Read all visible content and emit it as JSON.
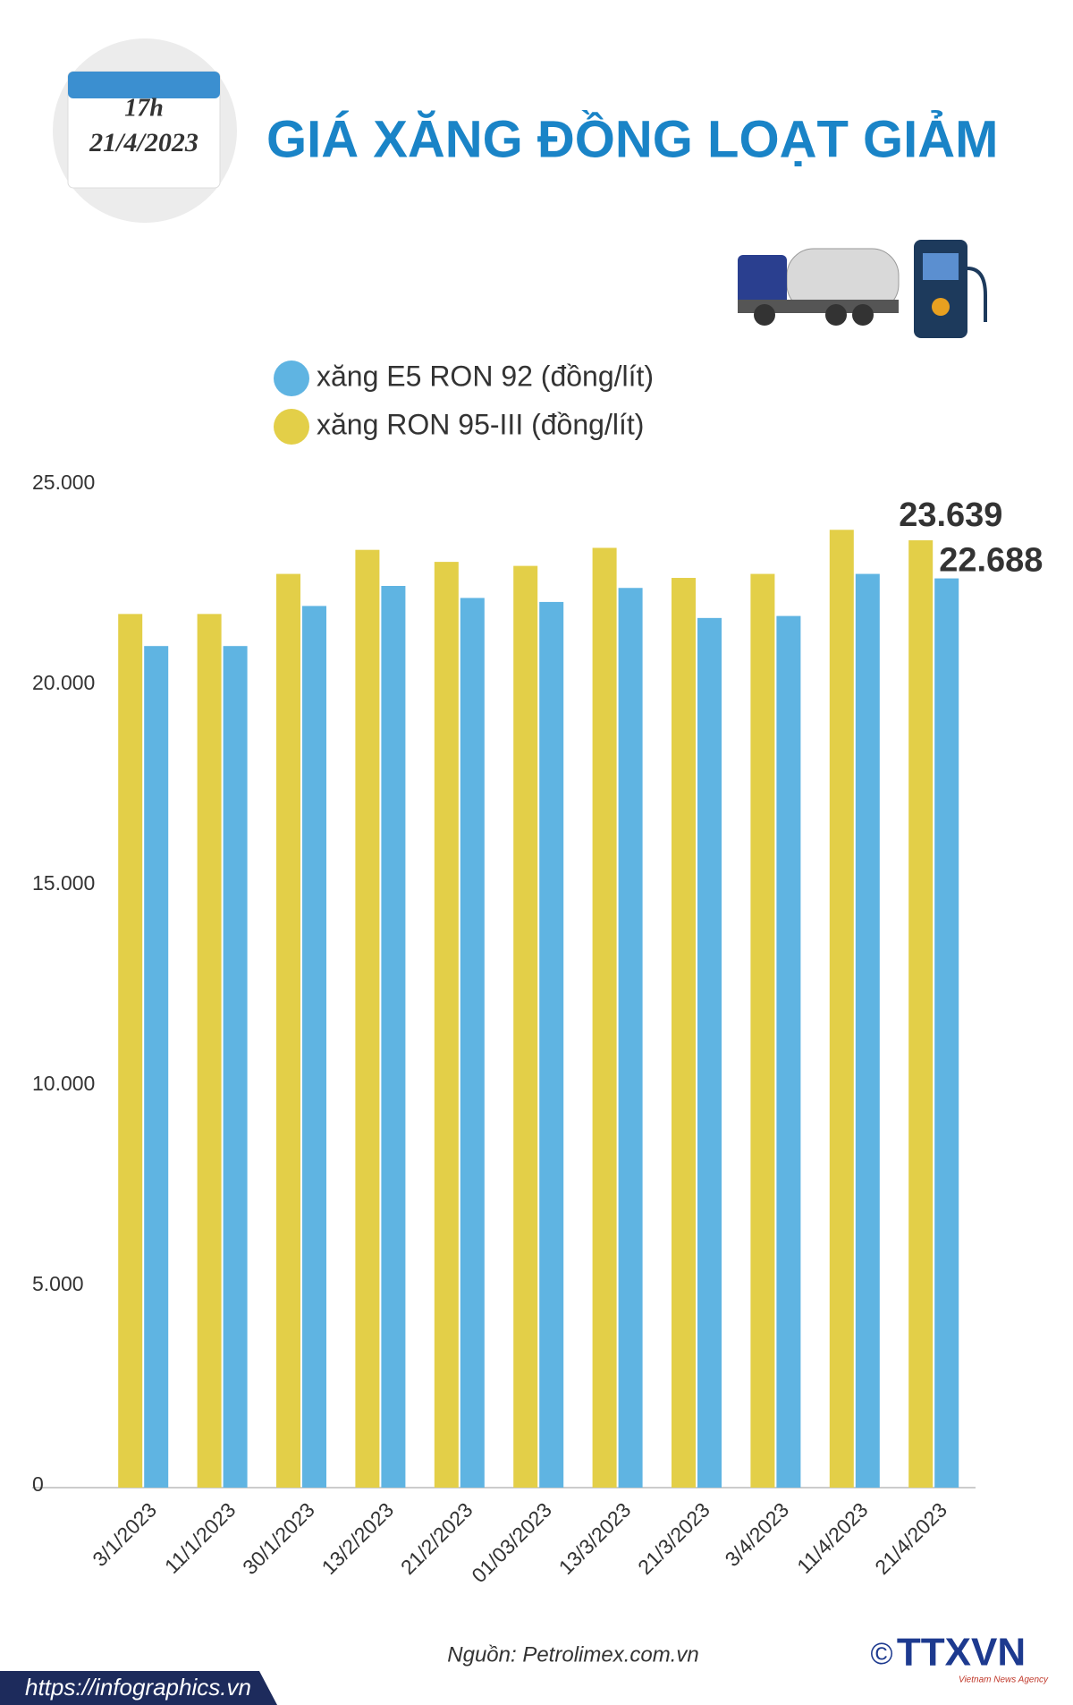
{
  "chart_data": {
    "type": "bar",
    "title": "GIÁ XĂNG ĐỒNG LOẠT GIẢM",
    "time": "17h",
    "date": "21/4/2023",
    "categories": [
      "3/1/2023",
      "11/1/2023",
      "30/1/2023",
      "13/2/2023",
      "21/2/2023",
      "01/03/2023",
      "13/3/2023",
      "21/3/2023",
      "3/4/2023",
      "11/4/2023",
      "21/4/2023"
    ],
    "series": [
      {
        "name": "xăng RON 95-III (đồng/lít)",
        "color": "#e3cf48",
        "values": [
          21800,
          21800,
          22800,
          23400,
          23100,
          23000,
          23450,
          22700,
          22800,
          23900,
          23639
        ],
        "value_labels": [
          null,
          null,
          null,
          null,
          null,
          null,
          null,
          null,
          null,
          null,
          "23.639"
        ]
      },
      {
        "name": "xăng E5 RON 92 (đồng/lít)",
        "color": "#5fb4e2",
        "values": [
          21000,
          21000,
          22000,
          22500,
          22200,
          22100,
          22450,
          21700,
          21750,
          22800,
          22688
        ],
        "value_labels": [
          null,
          null,
          null,
          null,
          null,
          null,
          null,
          null,
          null,
          null,
          "22.688"
        ]
      }
    ],
    "legend_order": [
      1,
      0
    ],
    "ylim": [
      0,
      25000
    ],
    "yticks": [
      0,
      {
        "value": 5000,
        "label": "5.000"
      },
      {
        "value": 10000,
        "label": "10.000"
      },
      {
        "value": 15000,
        "label": "15.000"
      },
      {
        "value": 20000,
        "label": "20.000"
      },
      {
        "value": 25000,
        "label": "25.000"
      }
    ],
    "grid": false,
    "source": "Nguồn: Petrolimex.com.vn",
    "website": "https://infographics.vn",
    "copyright": "©",
    "logo": "TTXVN",
    "logo_subtitle": "Vietnam News Agency"
  }
}
